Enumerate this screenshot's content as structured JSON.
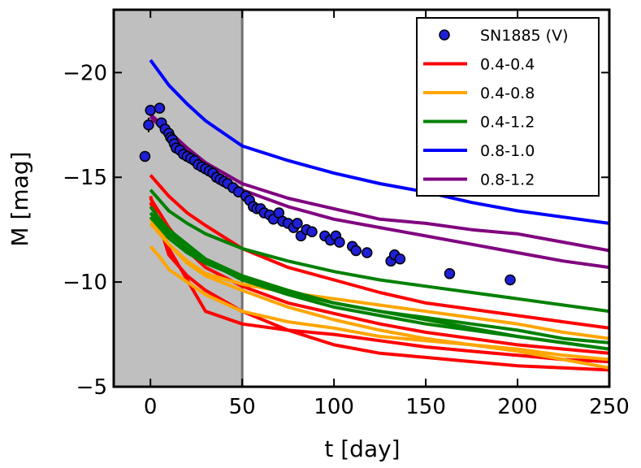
{
  "chart_data": {
    "type": "line",
    "xlabel": "t [day]",
    "ylabel": "M [mag]",
    "xlim": [
      -20,
      250
    ],
    "ylim": [
      -23,
      -5
    ],
    "y_inverted": true,
    "grid": false,
    "legend_position": "top-right",
    "shaded_region": {
      "x_from": -20,
      "x_to": 50,
      "color": "#bfbfbf"
    },
    "x_ticks": [
      0,
      50,
      100,
      150,
      200,
      250
    ],
    "x_tick_labels": [
      "0",
      "50",
      "100",
      "150",
      "200",
      "250"
    ],
    "y_ticks": [
      -20,
      -15,
      -10,
      -5
    ],
    "y_tick_labels": [
      "−20",
      "−15",
      "−10",
      "−5"
    ],
    "observed": {
      "name": "SN1885 (V)",
      "color": "#1f1fd6",
      "x": [
        -3,
        -1,
        0,
        5,
        6,
        8,
        10,
        11,
        12,
        13,
        14,
        16,
        18,
        20,
        22,
        24,
        26,
        28,
        30,
        32,
        34,
        36,
        38,
        40,
        42,
        45,
        48,
        52,
        54,
        56,
        58,
        60,
        62,
        65,
        67,
        70,
        72,
        75,
        78,
        80,
        82,
        85,
        88,
        95,
        98,
        101,
        103,
        110,
        112,
        118,
        131,
        133,
        136,
        163,
        196
      ],
      "y": [
        -16.0,
        -17.5,
        -18.2,
        -18.3,
        -17.6,
        -17.3,
        -17.1,
        -16.9,
        -16.8,
        -16.6,
        -16.4,
        -16.3,
        -16.1,
        -16.0,
        -15.9,
        -15.8,
        -15.6,
        -15.5,
        -15.4,
        -15.3,
        -15.2,
        -15.0,
        -14.9,
        -14.8,
        -14.7,
        -14.5,
        -14.3,
        -14.1,
        -13.9,
        -13.6,
        -13.5,
        -13.5,
        -13.3,
        -13.2,
        -13.0,
        -13.3,
        -12.9,
        -12.8,
        -12.6,
        -12.8,
        -12.2,
        -12.5,
        -12.4,
        -12.2,
        -12.0,
        -12.2,
        -11.9,
        -11.7,
        -11.5,
        -11.4,
        -11.0,
        -11.3,
        -11.1,
        -10.4,
        -10.1
      ],
      "yerr": [
        0.25,
        0.35,
        0.2,
        0.2,
        0.15,
        0.15,
        0.15,
        0.1,
        0.1,
        0.1,
        0.1,
        0.1,
        0.1,
        0.1,
        0.1,
        0.1,
        0.1,
        0.1,
        0.1,
        0.1,
        0.1,
        0.1,
        0.1,
        0.1,
        0.1,
        0.1,
        0.1,
        0.1,
        0.1,
        0.1,
        0.1,
        0.1,
        0.1,
        0.1,
        0.1,
        0.1,
        0.1,
        0.1,
        0.1,
        0.1,
        0.1,
        0.1,
        0.1,
        0.1,
        0.1,
        0.1,
        0.1,
        0.1,
        0.1,
        0.1,
        0.1,
        0.1,
        0.1,
        0.1,
        0.1
      ]
    },
    "series": [
      {
        "name": "0.4-0.4",
        "color": "#ff0000",
        "in_legend": true,
        "x": [
          0,
          5,
          10,
          20,
          30,
          50,
          75,
          100,
          125,
          150,
          175,
          200,
          225,
          250
        ],
        "y": [
          -15.1,
          -14.6,
          -14.1,
          -13.3,
          -12.7,
          -11.6,
          -10.7,
          -10.1,
          -9.5,
          -9.0,
          -8.7,
          -8.4,
          -8.1,
          -7.8
        ]
      },
      {
        "name": "0.4-0.4",
        "color": "#ff0000",
        "in_legend": false,
        "x": [
          0,
          5,
          10,
          20,
          30,
          50,
          75,
          100,
          125,
          150,
          175,
          200,
          225,
          250
        ],
        "y": [
          -14.1,
          -12.7,
          -11.3,
          -10.3,
          -9.6,
          -8.6,
          -7.7,
          -7.0,
          -6.6,
          -6.4,
          -6.2,
          -6.0,
          -5.9,
          -5.8
        ]
      },
      {
        "name": "0.4-0.4",
        "color": "#ff0000",
        "in_legend": false,
        "x": [
          0,
          5,
          10,
          20,
          30,
          50,
          75,
          100,
          125,
          150,
          175,
          200,
          225,
          250
        ],
        "y": [
          -13.8,
          -12.8,
          -11.6,
          -10.1,
          -8.6,
          -8.0,
          -7.7,
          -7.5,
          -7.2,
          -6.9,
          -6.7,
          -6.5,
          -6.3,
          -6.2
        ]
      },
      {
        "name": "0.4-0.4",
        "color": "#ff0000",
        "in_legend": false,
        "x": [
          0,
          5,
          10,
          20,
          30,
          50,
          75,
          100,
          125,
          150,
          175,
          200,
          225,
          250
        ],
        "y": [
          -14.0,
          -13.3,
          -12.6,
          -11.5,
          -10.7,
          -9.8,
          -9.0,
          -8.5,
          -8.0,
          -7.6,
          -7.3,
          -7.0,
          -6.8,
          -6.6
        ]
      },
      {
        "name": "0.4-0.8",
        "color": "#ffa500",
        "in_legend": true,
        "x": [
          0,
          5,
          10,
          20,
          30,
          50,
          75,
          100,
          125,
          150,
          175,
          200,
          225,
          250
        ],
        "y": [
          -12.8,
          -12.3,
          -11.8,
          -11.0,
          -10.4,
          -9.9,
          -9.5,
          -9.2,
          -8.9,
          -8.6,
          -8.3,
          -8.0,
          -7.6,
          -7.3
        ]
      },
      {
        "name": "0.4-0.8",
        "color": "#ffa500",
        "in_legend": false,
        "x": [
          0,
          5,
          10,
          20,
          30,
          50,
          75,
          100,
          125,
          150,
          175,
          200,
          225,
          250
        ],
        "y": [
          -11.7,
          -11.2,
          -10.6,
          -10.0,
          -9.4,
          -8.6,
          -8.1,
          -7.8,
          -7.4,
          -7.2,
          -7.0,
          -6.8,
          -6.5,
          -6.3
        ]
      },
      {
        "name": "0.4-0.8",
        "color": "#ffa500",
        "in_legend": false,
        "x": [
          0,
          5,
          10,
          20,
          30,
          50,
          75,
          100,
          125,
          150,
          175,
          200,
          225,
          250
        ],
        "y": [
          -13.0,
          -12.4,
          -11.8,
          -10.9,
          -10.3,
          -9.6,
          -8.8,
          -8.2,
          -7.7,
          -7.3,
          -7.0,
          -6.7,
          -6.3,
          -5.9
        ]
      },
      {
        "name": "0.4-1.2",
        "color": "#008000",
        "in_legend": true,
        "x": [
          0,
          5,
          10,
          20,
          30,
          50,
          75,
          100,
          125,
          150,
          175,
          200,
          225,
          250
        ],
        "y": [
          -14.4,
          -13.9,
          -13.4,
          -12.8,
          -12.3,
          -11.6,
          -11.0,
          -10.5,
          -10.1,
          -9.8,
          -9.5,
          -9.2,
          -8.9,
          -8.6
        ]
      },
      {
        "name": "0.4-1.2",
        "color": "#008000",
        "in_legend": false,
        "x": [
          0,
          5,
          10,
          20,
          30,
          50,
          75,
          100,
          125,
          150,
          175,
          200,
          225,
          250
        ],
        "y": [
          -13.6,
          -13.0,
          -12.5,
          -11.8,
          -11.1,
          -10.3,
          -9.6,
          -9.0,
          -8.6,
          -8.2,
          -7.8,
          -7.4,
          -7.1,
          -6.8
        ]
      },
      {
        "name": "0.4-1.2",
        "color": "#008000",
        "in_legend": false,
        "x": [
          0,
          5,
          10,
          20,
          30,
          50,
          75,
          100,
          125,
          150,
          175,
          200,
          225,
          250
        ],
        "y": [
          -13.3,
          -12.8,
          -12.3,
          -11.6,
          -11.0,
          -10.1,
          -9.4,
          -8.8,
          -8.4,
          -8.0,
          -7.7,
          -7.4,
          -7.1,
          -6.8
        ]
      },
      {
        "name": "0.4-1.2",
        "color": "#008000",
        "in_legend": false,
        "x": [
          0,
          5,
          10,
          20,
          30,
          50,
          75,
          100,
          125,
          150,
          175,
          200,
          225,
          250
        ],
        "y": [
          -13.1,
          -12.6,
          -12.1,
          -11.4,
          -10.9,
          -10.2,
          -9.5,
          -9.0,
          -8.6,
          -8.3,
          -8.0,
          -7.7,
          -7.3,
          -7.1
        ]
      },
      {
        "name": "0.8-1.0",
        "color": "#0000ff",
        "in_legend": true,
        "x": [
          0,
          10,
          20,
          30,
          50,
          75,
          100,
          125,
          150,
          175,
          200,
          225,
          250
        ],
        "y": [
          -20.6,
          -19.4,
          -18.5,
          -17.7,
          -16.5,
          -15.8,
          -15.2,
          -14.7,
          -14.3,
          -13.8,
          -13.4,
          -13.1,
          -12.8
        ]
      },
      {
        "name": "0.8-1.2",
        "color": "#800080",
        "in_legend": true,
        "x": [
          0,
          10,
          20,
          30,
          50,
          75,
          100,
          125,
          150,
          175,
          200,
          225,
          250
        ],
        "y": [
          -18.0,
          -17.2,
          -16.4,
          -15.7,
          -14.7,
          -14.0,
          -13.5,
          -13.0,
          -12.8,
          -12.5,
          -12.3,
          -11.9,
          -11.5
        ]
      },
      {
        "name": "0.8-1.2",
        "color": "#800080",
        "in_legend": false,
        "x": [
          0,
          10,
          20,
          30,
          50,
          75,
          100,
          125,
          150,
          175,
          200,
          225,
          250
        ],
        "y": [
          -17.9,
          -17.0,
          -16.2,
          -15.5,
          -14.4,
          -13.6,
          -13.0,
          -12.6,
          -12.2,
          -11.8,
          -11.4,
          -11.0,
          -10.7
        ]
      }
    ]
  }
}
